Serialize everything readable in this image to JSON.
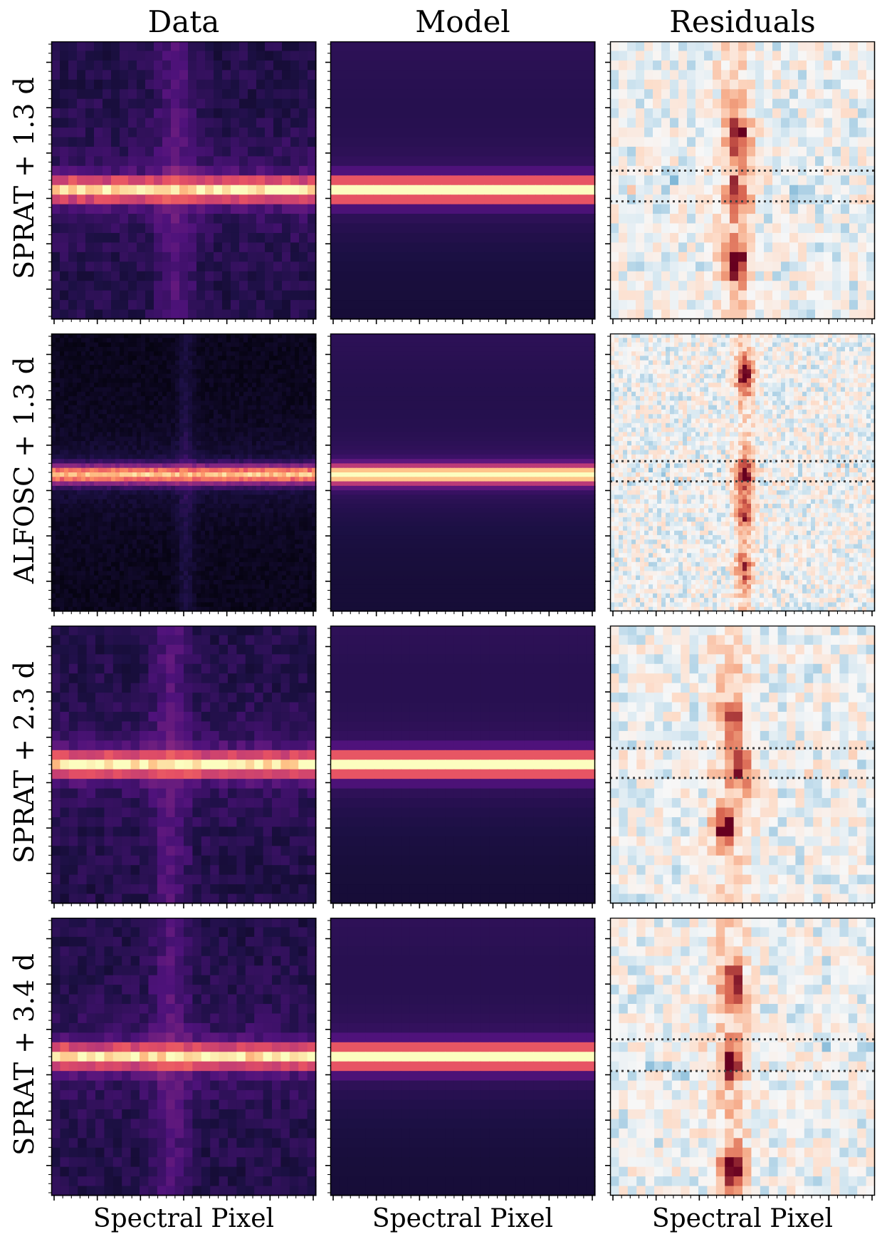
{
  "chart_data": {
    "type": "heatmap",
    "column_titles": [
      "Data",
      "Model",
      "Residuals"
    ],
    "row_labels": [
      "SPRAT  + 1.3 d",
      "ALFOSC  + 1.3 d",
      "SPRAT  + 2.3 d",
      "SPRAT  + 3.4 d"
    ],
    "xlabel": "Spectral Pixel",
    "rows": [
      {
        "instrument": "SPRAT",
        "epoch_days": 1.3,
        "grid": [
          29,
          31
        ],
        "trace_row": 15,
        "line_col": 14,
        "line_col_width": 2,
        "resid_band": [
          13.5,
          16.7
        ],
        "resid_blobs": [
          {
            "r": 9.5,
            "c": 14.5,
            "amp": 0.9
          },
          {
            "r": 22.5,
            "c": 14.5,
            "amp": 1.0
          },
          {
            "r": 15.5,
            "c": 14.5,
            "amp": 0.8
          }
        ]
      },
      {
        "instrument": "ALFOSC",
        "epoch_days": 1.3,
        "grid": [
          62,
          62
        ],
        "trace_row": 31,
        "line_col": 31,
        "line_col_width": 2,
        "resid_band": [
          28.5,
          33.0
        ],
        "resid_blobs": [
          {
            "r": 9,
            "c": 31,
            "amp": 0.9
          },
          {
            "r": 31,
            "c": 31,
            "amp": 0.9
          },
          {
            "r": 40,
            "c": 31,
            "amp": 0.6
          },
          {
            "r": 52,
            "c": 31,
            "amp": 0.6
          }
        ]
      },
      {
        "instrument": "SPRAT",
        "epoch_days": 2.3,
        "grid": [
          29,
          30
        ],
        "trace_row": 14,
        "line_col": 13,
        "line_col_width": 2,
        "resid_band": [
          12.8,
          15.9
        ],
        "resid_blobs": [
          {
            "r": 9.5,
            "c": 13.5,
            "amp": 0.6
          },
          {
            "r": 14.5,
            "c": 14.5,
            "amp": 0.8
          },
          {
            "r": 20.5,
            "c": 12.5,
            "amp": 1.0
          }
        ]
      },
      {
        "instrument": "SPRAT",
        "epoch_days": 3.4,
        "grid": [
          29,
          30
        ],
        "trace_row": 14,
        "line_col": 13,
        "line_col_width": 2,
        "resid_band": [
          12.7,
          16.0
        ],
        "resid_blobs": [
          {
            "r": 6.5,
            "c": 13.5,
            "amp": 0.9
          },
          {
            "r": 14.5,
            "c": 13.5,
            "amp": 0.8
          },
          {
            "r": 25.5,
            "c": 13.5,
            "amp": 1.0
          }
        ]
      }
    ],
    "colormaps": {
      "data": "magma",
      "model": "magma",
      "residuals": "RdBu_r"
    },
    "colors": {
      "resid_band_line": "#404040",
      "frame": "#000000"
    }
  }
}
